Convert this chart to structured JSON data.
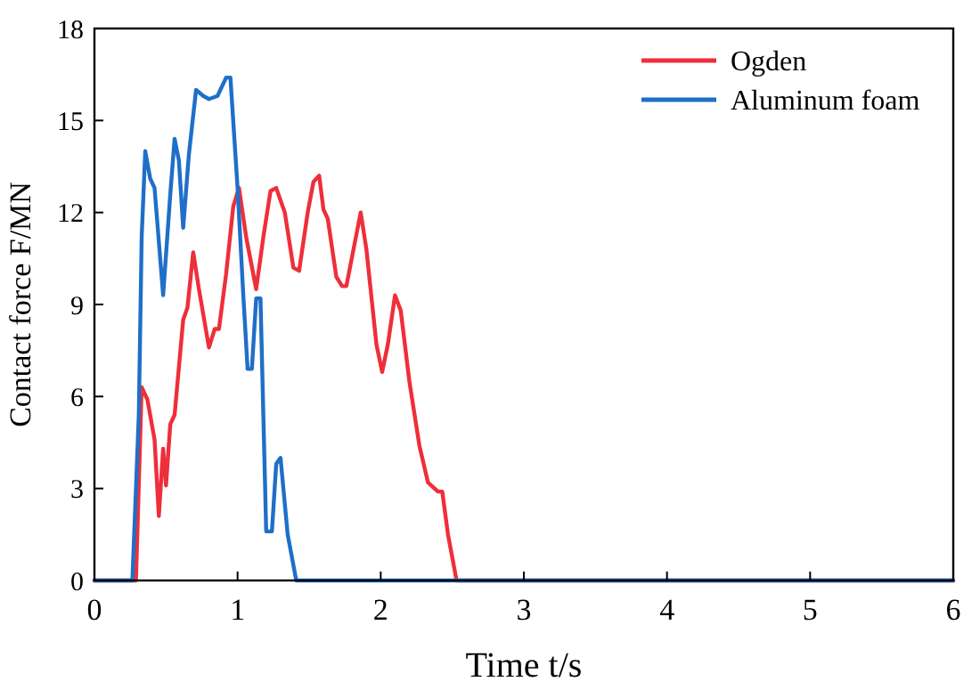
{
  "chart_data": {
    "type": "line",
    "xlabel": "Time t/s",
    "ylabel": "Contact force F/MN",
    "xlim": [
      0,
      6
    ],
    "ylim": [
      0,
      18
    ],
    "xticks": [
      0,
      1,
      2,
      3,
      4,
      5,
      6
    ],
    "yticks": [
      0,
      3,
      6,
      9,
      12,
      15,
      18
    ],
    "grid": false,
    "legend": "top right",
    "marker": "none",
    "line_style": "solid",
    "series": [
      {
        "name": "Ogden",
        "color": "#ee2f3a",
        "x": [
          0,
          0.29,
          0.33,
          0.37,
          0.42,
          0.45,
          0.48,
          0.5,
          0.53,
          0.56,
          0.62,
          0.65,
          0.69,
          0.73,
          0.8,
          0.84,
          0.87,
          0.92,
          0.97,
          1.01,
          1.06,
          1.13,
          1.18,
          1.23,
          1.27,
          1.33,
          1.39,
          1.43,
          1.49,
          1.53,
          1.57,
          1.6,
          1.63,
          1.69,
          1.73,
          1.76,
          1.86,
          1.9,
          1.97,
          2.01,
          2.05,
          2.1,
          2.14,
          2.2,
          2.27,
          2.33,
          2.4,
          2.43,
          2.47,
          2.53,
          6
        ],
        "values": [
          0,
          0,
          6.3,
          5.9,
          4.6,
          2.1,
          4.3,
          3.1,
          5.1,
          5.4,
          8.5,
          8.9,
          10.7,
          9.5,
          7.6,
          8.2,
          8.2,
          10,
          12.2,
          12.8,
          11.2,
          9.5,
          11.2,
          12.7,
          12.8,
          12,
          10.2,
          10.1,
          12,
          13,
          13.2,
          12.1,
          11.8,
          9.9,
          9.6,
          9.6,
          12,
          10.8,
          7.7,
          6.8,
          7.7,
          9.3,
          8.8,
          6.5,
          4.4,
          3.2,
          2.9,
          2.9,
          1.5,
          0,
          0
        ]
      },
      {
        "name": "Aluminum foam",
        "color": "#1f6fc8",
        "x": [
          0,
          0.265,
          0.31,
          0.33,
          0.355,
          0.39,
          0.42,
          0.48,
          0.53,
          0.56,
          0.59,
          0.62,
          0.66,
          0.71,
          0.76,
          0.8,
          0.86,
          0.92,
          0.95,
          1,
          1.04,
          1.07,
          1.1,
          1.13,
          1.16,
          1.2,
          1.24,
          1.27,
          1.3,
          1.35,
          1.41,
          6
        ],
        "values": [
          0,
          0,
          5.4,
          11.2,
          14,
          13.1,
          12.8,
          9.3,
          12.6,
          14.4,
          13.7,
          11.5,
          13.9,
          16,
          15.8,
          15.7,
          15.8,
          16.4,
          16.4,
          12.8,
          9.3,
          6.9,
          6.9,
          9.2,
          9.2,
          1.6,
          1.6,
          3.8,
          4,
          1.5,
          0,
          0
        ]
      }
    ]
  }
}
